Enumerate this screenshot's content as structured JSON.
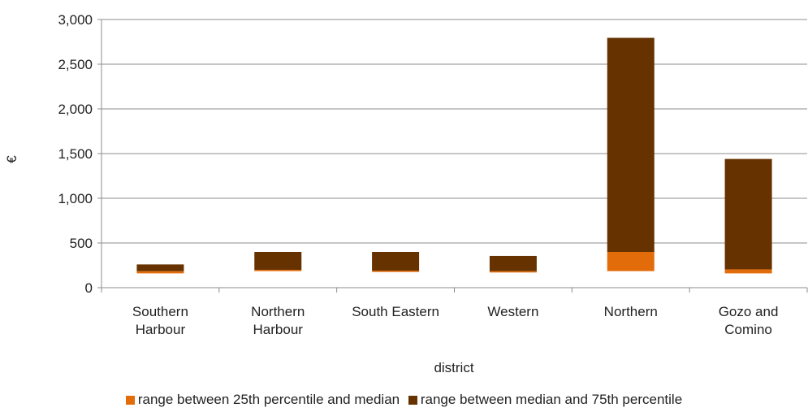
{
  "chart_data": {
    "type": "bar",
    "stacked": true,
    "categories": [
      [
        "Southern",
        "Harbour"
      ],
      [
        "Northern",
        "Harbour"
      ],
      [
        "South Eastern"
      ],
      [
        "Western"
      ],
      [
        "Northern"
      ],
      [
        "Gozo and",
        "Comino"
      ]
    ],
    "base_25th_percentile": [
      160,
      185,
      175,
      170,
      185,
      160
    ],
    "series": [
      {
        "name": "range between 25th percentile and median",
        "values": [
          25,
          15,
          15,
          15,
          215,
          45
        ],
        "color": "#e36c0a"
      },
      {
        "name": "range between median and 75th percentile",
        "values": [
          75,
          200,
          210,
          170,
          2395,
          1235
        ],
        "color": "#663300"
      }
    ],
    "xlabel": "district",
    "ylabel": "€",
    "ylim": [
      0,
      3000
    ],
    "yticks": [
      0,
      500,
      1000,
      1500,
      2000,
      2500,
      3000
    ],
    "ytick_labels": [
      "0",
      "500",
      "1,000",
      "1,500",
      "2,000",
      "2,500",
      "3,000"
    ],
    "grid": "horizontal",
    "legend_position": "bottom"
  }
}
